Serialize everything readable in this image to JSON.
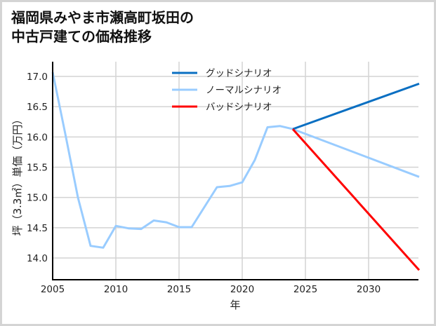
{
  "title": {
    "line1": "福岡県みやま市瀬高町坂田の",
    "line2": "中古戸建ての価格推移"
  },
  "colors": {
    "good": "#0a6fc2",
    "normal": "#99ccff",
    "bad": "#ff0000",
    "grid": "#d3d3d3",
    "axis": "#000000"
  },
  "chart_data": {
    "type": "line",
    "title": "福岡県みやま市瀬高町坂田の中古戸建ての価格推移",
    "xlabel": "年",
    "ylabel": "坪（3.3㎡）単価（万円）",
    "xlim": [
      2005,
      2034
    ],
    "ylim": [
      13.65,
      17.1
    ],
    "xticks": [
      2005,
      2010,
      2015,
      2020,
      2025,
      2030
    ],
    "yticks": [
      14.0,
      14.5,
      15.0,
      15.5,
      16.0,
      16.5,
      17.0
    ],
    "ytick_labels": [
      "14.0",
      "14.5",
      "15.0",
      "15.5",
      "16.0",
      "16.5",
      "17.0"
    ],
    "grid": true,
    "legend_position": "upper center",
    "series": [
      {
        "name": "グッドシナリオ",
        "key": "good",
        "x": [
          2024,
          2034
        ],
        "values": [
          16.13,
          16.88
        ]
      },
      {
        "name": "ノーマルシナリオ",
        "key": "normal",
        "x": [
          2005,
          2006,
          2007,
          2008,
          2009,
          2010,
          2011,
          2012,
          2013,
          2014,
          2015,
          2016,
          2017,
          2018,
          2019,
          2020,
          2021,
          2022,
          2023,
          2024,
          2034
        ],
        "values": [
          17.07,
          16.05,
          15.0,
          14.2,
          14.17,
          14.53,
          14.49,
          14.48,
          14.62,
          14.59,
          14.51,
          14.51,
          14.84,
          15.17,
          15.19,
          15.25,
          15.62,
          16.16,
          16.18,
          16.13,
          15.34
        ]
      },
      {
        "name": "バッドシナリオ",
        "key": "bad",
        "x": [
          2024,
          2034
        ],
        "values": [
          16.13,
          13.8
        ]
      }
    ]
  },
  "legend": {
    "items": [
      {
        "label": "グッドシナリオ",
        "color": "#0a6fc2"
      },
      {
        "label": "ノーマルシナリオ",
        "color": "#99ccff"
      },
      {
        "label": "バッドシナリオ",
        "color": "#ff0000"
      }
    ]
  }
}
